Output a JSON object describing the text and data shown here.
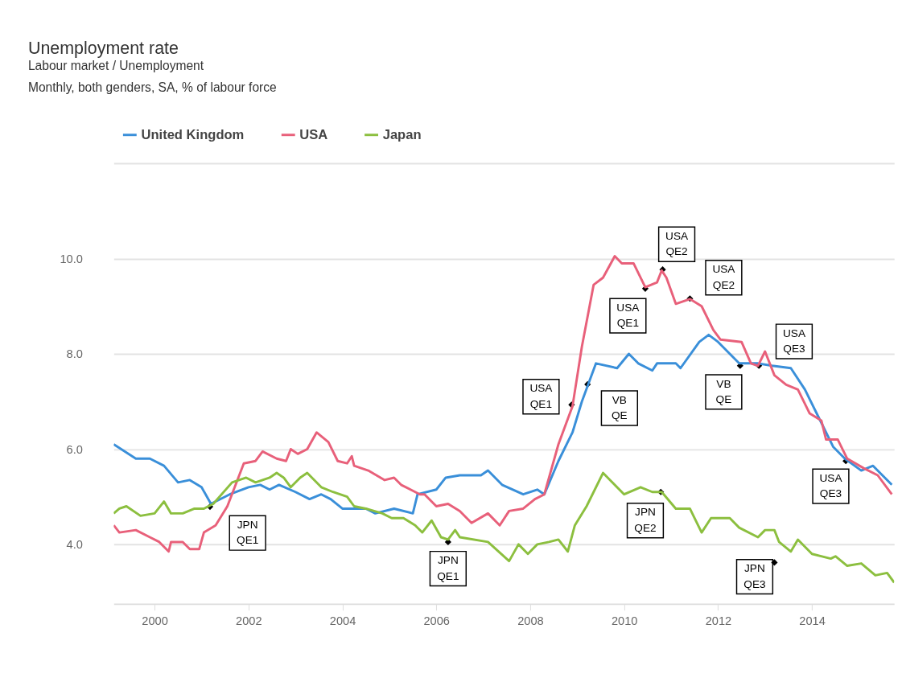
{
  "chart_data": {
    "type": "line",
    "title": "Unemployment rate",
    "subtitle": "Labour market / Unemployment\nMonthly, both genders, SA, % of labour force",
    "xlim": [
      1999.13,
      2015.75
    ],
    "xticks": [
      2000,
      2002,
      2004,
      2006,
      2008,
      2010,
      2012,
      2014
    ],
    "ylim": [
      2.75,
      12
    ],
    "yticks": [
      {
        "value": 4,
        "label": "4.0"
      },
      {
        "value": 6,
        "label": "6.0"
      },
      {
        "value": 8,
        "label": "8.0"
      },
      {
        "value": 10,
        "label": "10.0"
      },
      {
        "value": 12,
        "label": null
      }
    ],
    "grid": "y",
    "legend": "top",
    "marker": "none",
    "line_style": "solid",
    "series": [
      {
        "name": "United Kingdom",
        "color": "#3a8fd9",
        "x": [
          1999.13,
          1999.6,
          1999.9,
          2000.2,
          2000.5,
          2000.75,
          2001.0,
          2001.2,
          2001.6,
          2002.0,
          2002.25,
          2002.45,
          2002.65,
          2003.0,
          2003.3,
          2003.55,
          2003.75,
          2004.0,
          2004.5,
          2004.7,
          2005.1,
          2005.5,
          2005.6,
          2006.0,
          2006.2,
          2006.5,
          2006.95,
          2007.1,
          2007.4,
          2007.85,
          2008.15,
          2008.3,
          2008.6,
          2008.9,
          2009.1,
          2009.4,
          2009.85,
          2010.1,
          2010.3,
          2010.6,
          2010.7,
          2011.1,
          2011.2,
          2011.6,
          2011.8,
          2012.0,
          2012.25,
          2012.45,
          2012.85,
          2013.15,
          2013.55,
          2013.85,
          2014.1,
          2014.45,
          2014.7,
          2015.05,
          2015.3,
          2015.7
        ],
        "values": [
          6.1,
          5.8,
          5.8,
          5.65,
          5.3,
          5.35,
          5.2,
          4.85,
          5.05,
          5.2,
          5.25,
          5.15,
          5.25,
          5.1,
          4.95,
          5.05,
          4.95,
          4.75,
          4.75,
          4.65,
          4.75,
          4.65,
          5.05,
          5.15,
          5.4,
          5.45,
          5.45,
          5.55,
          5.25,
          5.05,
          5.15,
          5.05,
          5.75,
          6.35,
          7.0,
          7.8,
          7.7,
          8.0,
          7.8,
          7.65,
          7.8,
          7.8,
          7.7,
          8.25,
          8.4,
          8.25,
          8.0,
          7.8,
          7.8,
          7.75,
          7.7,
          7.25,
          6.75,
          6.05,
          5.8,
          5.55,
          5.65,
          5.25
        ]
      },
      {
        "name": "USA",
        "color": "#e8607a",
        "x": [
          1999.13,
          1999.25,
          1999.6,
          1999.9,
          2000.1,
          2000.3,
          2000.35,
          2000.6,
          2000.75,
          2000.95,
          2001.05,
          2001.3,
          2001.55,
          2001.9,
          2002.15,
          2002.3,
          2002.6,
          2002.8,
          2002.9,
          2003.05,
          2003.25,
          2003.45,
          2003.7,
          2003.9,
          2004.1,
          2004.2,
          2004.25,
          2004.55,
          2004.9,
          2005.1,
          2005.25,
          2005.65,
          2005.75,
          2006.0,
          2006.25,
          2006.5,
          2006.75,
          2007.1,
          2007.35,
          2007.55,
          2007.85,
          2008.1,
          2008.3,
          2008.6,
          2008.9,
          2009.1,
          2009.35,
          2009.55,
          2009.8,
          2009.95,
          2010.2,
          2010.45,
          2010.7,
          2010.8,
          2010.9,
          2011.1,
          2011.4,
          2011.65,
          2011.9,
          2012.05,
          2012.5,
          2012.7,
          2012.85,
          2013.0,
          2013.2,
          2013.45,
          2013.7,
          2013.95,
          2014.2,
          2014.3,
          2014.55,
          2014.75,
          2015.1,
          2015.4,
          2015.7
        ],
        "values": [
          4.4,
          4.25,
          4.3,
          4.15,
          4.05,
          3.85,
          4.05,
          4.05,
          3.9,
          3.9,
          4.25,
          4.4,
          4.8,
          5.7,
          5.75,
          5.95,
          5.8,
          5.75,
          6.0,
          5.9,
          6.0,
          6.35,
          6.15,
          5.75,
          5.7,
          5.85,
          5.65,
          5.55,
          5.35,
          5.4,
          5.25,
          5.05,
          5.05,
          4.8,
          4.85,
          4.7,
          4.45,
          4.65,
          4.4,
          4.7,
          4.75,
          4.95,
          5.05,
          6.1,
          6.9,
          8.15,
          9.45,
          9.6,
          10.05,
          9.9,
          9.9,
          9.4,
          9.5,
          9.75,
          9.6,
          9.05,
          9.15,
          9.0,
          8.5,
          8.3,
          8.25,
          7.8,
          7.75,
          8.05,
          7.55,
          7.35,
          7.25,
          6.75,
          6.6,
          6.2,
          6.2,
          5.8,
          5.6,
          5.45,
          5.05
        ]
      },
      {
        "name": "Japan",
        "color": "#8cbf3f",
        "x": [
          1999.13,
          1999.25,
          1999.4,
          1999.7,
          2000.0,
          2000.2,
          2000.35,
          2000.6,
          2000.85,
          2001.05,
          2001.25,
          2001.65,
          2001.95,
          2002.15,
          2002.45,
          2002.6,
          2002.75,
          2002.9,
          2003.1,
          2003.25,
          2003.55,
          2003.8,
          2004.1,
          2004.25,
          2004.5,
          2004.85,
          2005.05,
          2005.3,
          2005.55,
          2005.7,
          2005.9,
          2006.1,
          2006.25,
          2006.4,
          2006.5,
          2007.1,
          2007.55,
          2007.75,
          2007.95,
          2008.15,
          2008.4,
          2008.6,
          2008.8,
          2008.95,
          2009.2,
          2009.55,
          2009.7,
          2010.0,
          2010.35,
          2010.6,
          2010.8,
          2011.1,
          2011.4,
          2011.65,
          2011.85,
          2012.25,
          2012.45,
          2012.85,
          2013.0,
          2013.2,
          2013.3,
          2013.55,
          2013.7,
          2014.0,
          2014.4,
          2014.5,
          2014.75,
          2015.05,
          2015.35,
          2015.6,
          2015.75
        ],
        "values": [
          4.65,
          4.75,
          4.8,
          4.6,
          4.65,
          4.9,
          4.65,
          4.65,
          4.75,
          4.75,
          4.85,
          5.3,
          5.4,
          5.3,
          5.4,
          5.5,
          5.4,
          5.2,
          5.4,
          5.5,
          5.2,
          5.1,
          5.0,
          4.8,
          4.75,
          4.65,
          4.55,
          4.55,
          4.4,
          4.25,
          4.5,
          4.15,
          4.1,
          4.3,
          4.15,
          4.05,
          3.65,
          4.0,
          3.8,
          4.0,
          4.05,
          4.1,
          3.85,
          4.4,
          4.8,
          5.5,
          5.35,
          5.05,
          5.2,
          5.1,
          5.1,
          4.75,
          4.75,
          4.25,
          4.55,
          4.55,
          4.35,
          4.15,
          4.3,
          4.3,
          4.05,
          3.85,
          4.1,
          3.8,
          3.7,
          3.75,
          3.55,
          3.6,
          3.35,
          3.4,
          3.2
        ]
      }
    ],
    "annotations": [
      {
        "text": "JPN QE1",
        "x": 2001.18,
        "y": 4.79
      },
      {
        "text": "JPN QE1",
        "x": 2006.25,
        "y": 4.05
      },
      {
        "text": "USA QE1",
        "x": 2008.88,
        "y": 6.93
      },
      {
        "text": "VB QE",
        "x": 2009.22,
        "y": 7.36
      },
      {
        "text": "USA QE1",
        "x": 2010.45,
        "y": 9.37
      },
      {
        "text": "USA QE2",
        "x": 2010.82,
        "y": 9.77
      },
      {
        "text": "USA QE2",
        "x": 2011.4,
        "y": 9.16
      },
      {
        "text": "VB QE",
        "x": 2012.47,
        "y": 7.75
      },
      {
        "text": "USA QE3",
        "x": 2012.87,
        "y": 7.75
      },
      {
        "text": "USA QE3",
        "x": 2014.72,
        "y": 5.75
      },
      {
        "text": "JPN QE2",
        "x": 2010.78,
        "y": 5.1
      },
      {
        "text": "JPN QE3",
        "x": 2013.2,
        "y": 3.62
      }
    ]
  }
}
